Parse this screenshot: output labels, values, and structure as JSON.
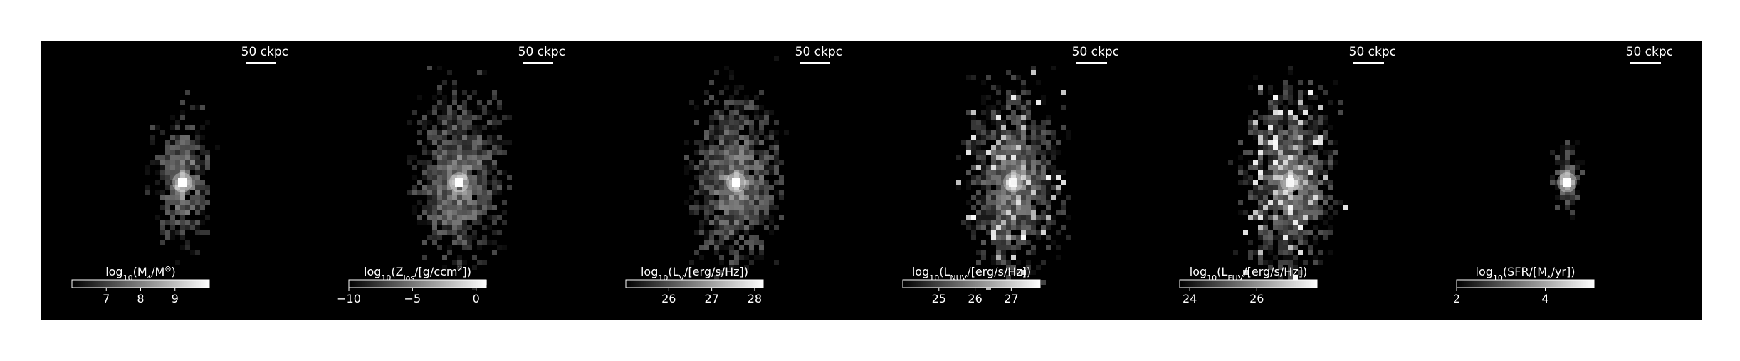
{
  "figure": {
    "panels": [
      {
        "id": "stellar-mass",
        "scalebar_label": "50 ckpc",
        "colorbar": {
          "prefix": "log",
          "sub": "10",
          "label_body": "(M",
          "label_sub": "*",
          "label_tail": "/M",
          "label_tail_sub": "⊙",
          "label_end": ")",
          "range": [
            6,
            10
          ],
          "ticks": [
            {
              "value": 7,
              "label": "7"
            },
            {
              "value": 8,
              "label": "8"
            },
            {
              "value": 9,
              "label": "9"
            }
          ]
        },
        "map": {
          "core_brightness": 1.0,
          "extent": "compact",
          "seed": 11
        }
      },
      {
        "id": "metallicity",
        "scalebar_label": "50 ckpc",
        "colorbar": {
          "prefix": "log",
          "sub": "10",
          "label_body": "(Z",
          "label_sub": "los",
          "label_tail": "/[g/ccm",
          "label_tail_sub": "2",
          "label_end": "])",
          "range": [
            -10,
            0.8
          ],
          "ticks": [
            {
              "value": -10,
              "label": "−10"
            },
            {
              "value": -5,
              "label": "−5"
            },
            {
              "value": 0,
              "label": "0"
            }
          ]
        },
        "map": {
          "core_brightness": 1.0,
          "extent": "extended",
          "seed": 23
        }
      },
      {
        "id": "luminosity-v",
        "scalebar_label": "50 ckpc",
        "colorbar": {
          "prefix": "log",
          "sub": "10",
          "label_body": "(L",
          "label_sub": "V",
          "label_tail": "/[erg/s/Hz])",
          "label_tail_sub": "",
          "label_end": "",
          "range": [
            25,
            28.2
          ],
          "ticks": [
            {
              "value": 26,
              "label": "26"
            },
            {
              "value": 27,
              "label": "27"
            },
            {
              "value": 28,
              "label": "28"
            }
          ]
        },
        "map": {
          "core_brightness": 1.0,
          "extent": "extended",
          "seed": 37
        }
      },
      {
        "id": "luminosity-nuv",
        "scalebar_label": "50 ckpc",
        "colorbar": {
          "prefix": "log",
          "sub": "10",
          "label_body": "(L",
          "label_sub": "NUV",
          "label_tail": "/[erg/s/Hz])",
          "label_tail_sub": "",
          "label_end": "",
          "range": [
            24,
            27.8
          ],
          "ticks": [
            {
              "value": 25,
              "label": "25"
            },
            {
              "value": 26,
              "label": "26"
            },
            {
              "value": 27,
              "label": "27"
            }
          ]
        },
        "map": {
          "core_brightness": 0.85,
          "extent": "clumpy",
          "seed": 41
        }
      },
      {
        "id": "luminosity-fuv",
        "scalebar_label": "50 ckpc",
        "colorbar": {
          "prefix": "log",
          "sub": "10",
          "label_body": "(L",
          "label_sub": "FUV",
          "label_tail": "/[erg/s/Hz])",
          "label_tail_sub": "",
          "label_end": "",
          "range": [
            23.7,
            27.8
          ],
          "ticks": [
            {
              "value": 24,
              "label": "24"
            },
            {
              "value": 26,
              "label": "26"
            }
          ]
        },
        "map": {
          "core_brightness": 0.85,
          "extent": "clumpy",
          "seed": 53
        }
      },
      {
        "id": "star-formation-rate",
        "scalebar_label": "50 ckpc",
        "colorbar": {
          "prefix": "log",
          "sub": "10",
          "label_body": "(SFR/[M",
          "label_sub": "*",
          "label_tail": "/yr])",
          "label_tail_sub": "",
          "label_end": "",
          "range": [
            2,
            5.1
          ],
          "ticks": [
            {
              "value": 2,
              "label": "2"
            },
            {
              "value": 4,
              "label": "4"
            }
          ]
        },
        "map": {
          "core_brightness": 1.0,
          "extent": "tiny",
          "seed": 67
        }
      }
    ],
    "colors": {
      "background": "#000000",
      "foreground": "#ffffff",
      "page": "#ffffff"
    },
    "colormap": "greyscale"
  }
}
